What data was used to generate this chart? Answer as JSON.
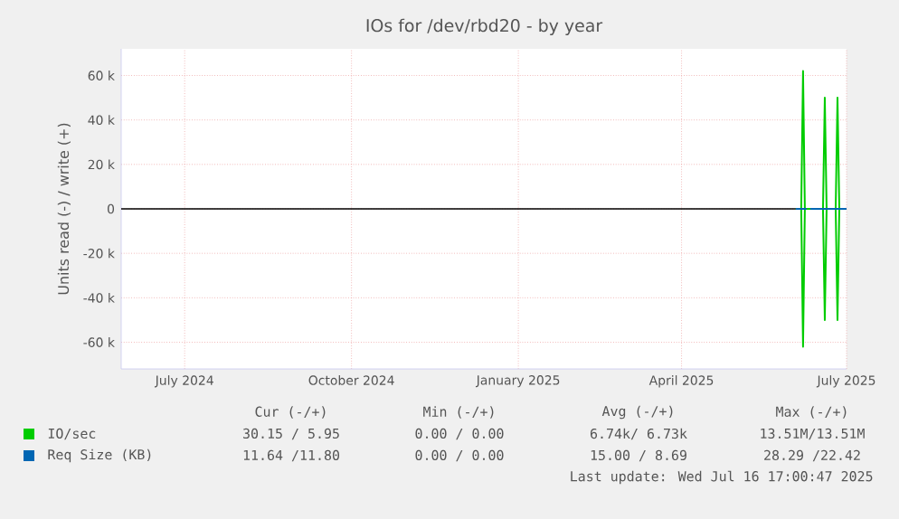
{
  "chart_data": {
    "type": "line",
    "title": "IOs for /dev/rbd20 - by year",
    "ylabel": "Units read (-) / write (+)",
    "xlim": [
      "2024-06-11",
      "2025-07-16"
    ],
    "xticks": [
      {
        "value": "2024-07-16",
        "label": "July 2024"
      },
      {
        "value": "2024-10-16",
        "label": "October 2024"
      },
      {
        "value": "2025-01-16",
        "label": "January 2025"
      },
      {
        "value": "2025-04-16",
        "label": "April 2025"
      },
      {
        "value": "2025-07-16",
        "label": "July 2025"
      }
    ],
    "ylim": [
      -72000,
      72000
    ],
    "yticks": [
      {
        "value": -60000,
        "label": "-60 k"
      },
      {
        "value": -40000,
        "label": "-40 k"
      },
      {
        "value": -20000,
        "label": "-20 k"
      },
      0,
      {
        "value": 20000,
        "label": "20 k"
      },
      {
        "value": 40000,
        "label": "40 k"
      },
      {
        "value": 60000,
        "label": "60 k"
      }
    ],
    "grid": true,
    "legend": "bottom",
    "ref_lines": [
      {
        "axis": "y",
        "value": 0,
        "color": "#000000"
      }
    ],
    "series": [
      {
        "name": "IO/sec",
        "color": "#00cc00",
        "x": [
          "2025-06-18",
          "2025-06-21",
          "2025-06-22",
          "2025-06-23",
          "2025-07-03",
          "2025-07-04",
          "2025-07-05",
          "2025-07-10",
          "2025-07-11",
          "2025-07-12",
          "2025-07-16"
        ],
        "values": [
          0,
          0,
          62000,
          0,
          0,
          50000,
          0,
          0,
          50000,
          0,
          0
        ]
      },
      {
        "color": "#00cc00",
        "x": [
          "2025-06-18",
          "2025-06-21",
          "2025-06-22",
          "2025-06-23",
          "2025-07-03",
          "2025-07-04",
          "2025-07-05",
          "2025-07-10",
          "2025-07-11",
          "2025-07-12",
          "2025-07-16"
        ],
        "values": [
          0,
          0,
          -62000,
          0,
          0,
          -50000,
          0,
          0,
          -50000,
          0,
          0
        ]
      },
      {
        "name": "Req Size (KB)",
        "color": "#0066b3",
        "x": [
          "2025-06-18",
          "2025-06-24",
          "2025-06-25",
          "2025-06-26",
          "2025-07-16"
        ],
        "values": [
          0,
          0,
          null,
          0,
          0
        ]
      }
    ],
    "annotations": [
      "Cur (-/+)",
      "Min (-/+)",
      "Avg (-/+)",
      "Max (-/+)",
      "30.15 / 5.95",
      "0.00 / 0.00",
      "6.74k/ 6.73k",
      "13.51M/13.51M",
      "11.64 /11.80",
      "0.00 / 0.00",
      "15.00 / 8.69",
      "28.29 /22.42",
      "Last update: Wed Jul 16 17:00:47 2025"
    ]
  }
}
